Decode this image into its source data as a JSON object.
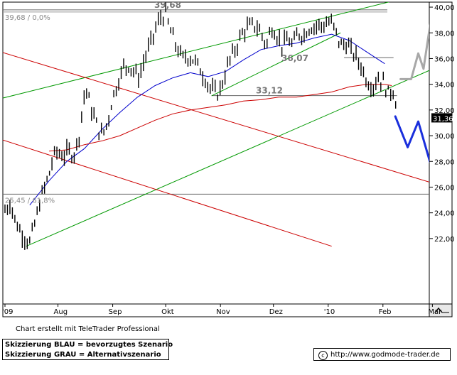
{
  "chart_data": {
    "type": "line",
    "title": "",
    "y_ticks": [
      22,
      24,
      26,
      28,
      30,
      32,
      34,
      36,
      38,
      40
    ],
    "y_tick_labels": [
      "22,00",
      "24,00",
      "26,00",
      "28,00",
      "30,00",
      "32,00",
      "34,00",
      "36,00",
      "38,00",
      "40,00"
    ],
    "x_ticks": [
      {
        "label": "'09",
        "day": 0
      },
      {
        "label": "Aug",
        "day": 30
      },
      {
        "label": "Sep",
        "day": 61
      },
      {
        "label": "Okt",
        "day": 91
      },
      {
        "label": "Nov",
        "day": 122
      },
      {
        "label": "Dez",
        "day": 152
      },
      {
        "label": "'10",
        "day": 183
      },
      {
        "label": "Feb",
        "day": 214
      },
      {
        "label": "Mar",
        "day": 242
      }
    ],
    "ylim": [
      21.6,
      40.5
    ],
    "last_price_label": "31,36",
    "last_price": 31.36,
    "annotations": [
      {
        "text": "39,68",
        "value": 39.68
      },
      {
        "text": "36,07",
        "value": 36.07
      },
      {
        "text": "33,12",
        "value": 33.12
      }
    ],
    "fib_labels": [
      {
        "text": "39,68 / 0,0%",
        "value": 39.68
      },
      {
        "text": "25,45 / 61,8%",
        "value": 25.45
      }
    ],
    "horizontal_levels": [
      39.68,
      25.45,
      33.12,
      36.07
    ],
    "price_path": [
      [
        0,
        24.2
      ],
      [
        3,
        24.8
      ],
      [
        6,
        23.3
      ],
      [
        9,
        22.5
      ],
      [
        12,
        22.0
      ],
      [
        14,
        21.7
      ],
      [
        17,
        23.2
      ],
      [
        20,
        25.0
      ],
      [
        23,
        26.2
      ],
      [
        25,
        27.0
      ],
      [
        27,
        28.1
      ],
      [
        29,
        28.8
      ],
      [
        33,
        28.4
      ],
      [
        36,
        28.8
      ],
      [
        39,
        28.5
      ],
      [
        42,
        30.0
      ],
      [
        44,
        32.5
      ],
      [
        46,
        33.6
      ],
      [
        49,
        32.0
      ],
      [
        52,
        30.8
      ],
      [
        55,
        30.0
      ],
      [
        58,
        31.0
      ],
      [
        61,
        33.0
      ],
      [
        64,
        34.2
      ],
      [
        67,
        35.3
      ],
      [
        70,
        35.5
      ],
      [
        73,
        35.0
      ],
      [
        76,
        34.5
      ],
      [
        79,
        36.0
      ],
      [
        82,
        37.0
      ],
      [
        85,
        38.2
      ],
      [
        88,
        39.2
      ],
      [
        91,
        39.4
      ],
      [
        94,
        38.0
      ],
      [
        97,
        37.0
      ],
      [
        100,
        36.0
      ],
      [
        103,
        36.2
      ],
      [
        106,
        36.0
      ],
      [
        109,
        35.5
      ],
      [
        112,
        34.8
      ],
      [
        115,
        34.0
      ],
      [
        118,
        33.4
      ],
      [
        121,
        33.3
      ],
      [
        124,
        34.5
      ],
      [
        127,
        35.8
      ],
      [
        130,
        36.6
      ],
      [
        133,
        37.6
      ],
      [
        136,
        38.3
      ],
      [
        139,
        38.5
      ],
      [
        142,
        38.6
      ],
      [
        145,
        38.0
      ],
      [
        148,
        37.0
      ],
      [
        151,
        38.5
      ],
      [
        154,
        37.8
      ],
      [
        157,
        37.0
      ],
      [
        160,
        37.5
      ],
      [
        163,
        37.0
      ],
      [
        166,
        38.0
      ],
      [
        169,
        37.8
      ],
      [
        172,
        38.4
      ],
      [
        175,
        38.5
      ],
      [
        178,
        38.6
      ],
      [
        181,
        38.6
      ],
      [
        184,
        38.9
      ],
      [
        187,
        38.2
      ],
      [
        190,
        37.0
      ],
      [
        193,
        37.2
      ],
      [
        196,
        36.6
      ],
      [
        199,
        36.1
      ],
      [
        202,
        35.3
      ],
      [
        205,
        34.3
      ],
      [
        208,
        33.8
      ],
      [
        211,
        34.5
      ],
      [
        214,
        34.2
      ],
      [
        217,
        33.3
      ],
      [
        220,
        33.6
      ],
      [
        222,
        32.0
      ]
    ],
    "series": [
      {
        "name": "",
        "color": "#0000cc",
        "points": [
          [
            14,
            24.6
          ],
          [
            25,
            26.5
          ],
          [
            35,
            28.0
          ],
          [
            45,
            29.0
          ],
          [
            55,
            30.5
          ],
          [
            65,
            31.8
          ],
          [
            75,
            33.0
          ],
          [
            85,
            33.9
          ],
          [
            95,
            34.5
          ],
          [
            105,
            34.9
          ],
          [
            115,
            34.6
          ],
          [
            125,
            35.0
          ],
          [
            135,
            35.9
          ],
          [
            145,
            36.7
          ],
          [
            155,
            37.0
          ],
          [
            165,
            37.2
          ],
          [
            175,
            37.6
          ],
          [
            185,
            37.9
          ],
          [
            195,
            37.4
          ],
          [
            205,
            36.5
          ],
          [
            215,
            35.6
          ]
        ]
      },
      {
        "name": "",
        "color": "#cc0000",
        "points": [
          [
            25,
            28.8
          ],
          [
            35,
            28.9
          ],
          [
            45,
            29.3
          ],
          [
            55,
            29.6
          ],
          [
            65,
            30.0
          ],
          [
            75,
            30.6
          ],
          [
            85,
            31.2
          ],
          [
            95,
            31.7
          ],
          [
            105,
            32.0
          ],
          [
            115,
            32.2
          ],
          [
            125,
            32.4
          ],
          [
            135,
            32.7
          ],
          [
            145,
            32.8
          ],
          [
            155,
            33.0
          ],
          [
            165,
            33.0
          ],
          [
            175,
            33.2
          ],
          [
            185,
            33.4
          ],
          [
            195,
            33.8
          ],
          [
            205,
            34.0
          ],
          [
            215,
            34.0
          ],
          [
            219,
            33.9
          ]
        ]
      }
    ],
    "trend_lines": [
      {
        "color": "#009900",
        "points": [
          [
            -2,
            32.9
          ],
          [
            229,
            40.8
          ]
        ]
      },
      {
        "color": "#009900",
        "points": [
          [
            12,
            21.4
          ],
          [
            264,
            36.5
          ]
        ]
      },
      {
        "color": "#009900",
        "points": [
          [
            117,
            33.1
          ],
          [
            190,
            38.0
          ]
        ]
      },
      {
        "color": "#cc0000",
        "points": [
          [
            -2,
            36.5
          ],
          [
            264,
            25.4
          ]
        ]
      },
      {
        "color": "#cc0000",
        "points": [
          [
            -2,
            29.7
          ],
          [
            185,
            21.4
          ]
        ]
      }
    ],
    "scenario_blue": [
      [
        221,
        31.5
      ],
      [
        228,
        29.1
      ],
      [
        234,
        31.1
      ],
      [
        245,
        25.9
      ],
      [
        250,
        27.7
      ]
    ],
    "scenario_gray": [
      [
        224,
        34.4
      ],
      [
        230,
        34.4
      ],
      [
        234,
        36.4
      ],
      [
        237,
        35.2
      ],
      [
        242,
        39.8
      ],
      [
        246,
        38.5
      ]
    ]
  },
  "footer": {
    "credit": "Chart erstellt mit TeleTrader Professional",
    "legend_blue": "Skizzierung BLAU = bevorzugtes Szenario",
    "legend_gray": "Skizzierung GRAU = Alternativszenario",
    "source_symbol": "c",
    "source": "http://www.godmode-trader.de"
  }
}
